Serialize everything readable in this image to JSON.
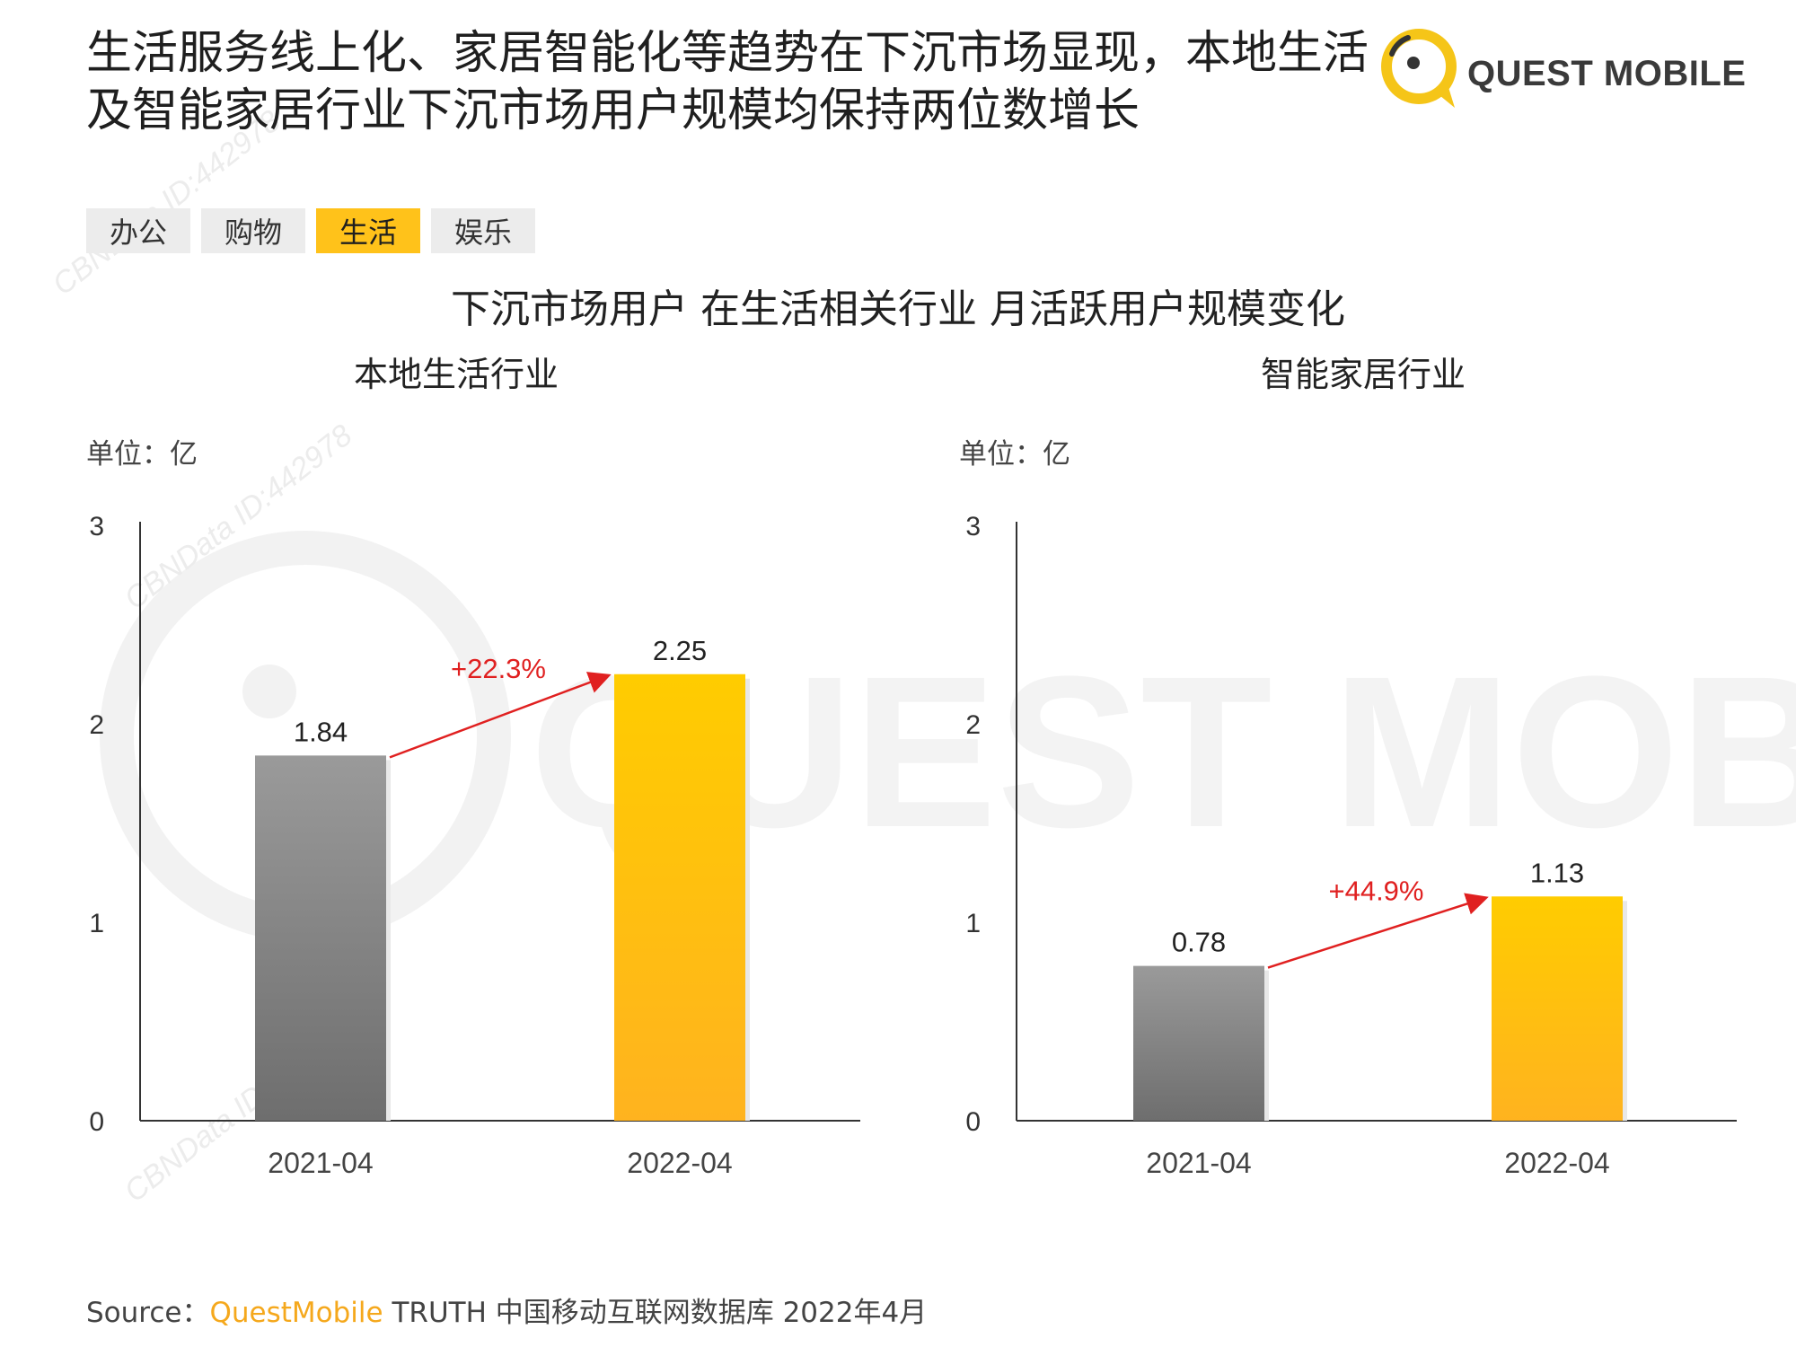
{
  "headline": {
    "line1": "生活服务线上化、家居智能化等趋势在下沉市场显现，本地生活",
    "line2": "及智能家居行业下沉市场用户规模均保持两位数增长"
  },
  "logo": {
    "text": "QUEST MOBILE",
    "icon": "quest-mobile-logo-icon",
    "color": "#f5c518"
  },
  "tabs": [
    {
      "label": "办公",
      "active": false
    },
    {
      "label": "购物",
      "active": false
    },
    {
      "label": "生活",
      "active": true
    },
    {
      "label": "娱乐",
      "active": false
    }
  ],
  "main_title": "下沉市场用户 在生活相关行业 月活跃用户规模变化",
  "watermark": {
    "text": "QUEST MOBILE",
    "diagonal_lines": [
      "CBNData ID:442978",
      "CBNData ID:442978",
      "CBNData ID:442978"
    ]
  },
  "chart_data": [
    {
      "type": "bar",
      "title": "本地生活行业",
      "unit_label": "单位：亿",
      "categories": [
        "2021-04",
        "2022-04"
      ],
      "values": [
        1.84,
        2.25
      ],
      "value_labels": [
        "1.84",
        "2.25"
      ],
      "ylim": [
        0,
        3
      ],
      "yticks": [
        "0",
        "1",
        "2",
        "3"
      ],
      "growth_label": "+22.3%",
      "colors": [
        "#7a7a7a",
        "#ffc107"
      ],
      "annotation_color": "#e02020",
      "grid": false
    },
    {
      "type": "bar",
      "title": "智能家居行业",
      "unit_label": "单位：亿",
      "categories": [
        "2021-04",
        "2022-04"
      ],
      "values": [
        0.78,
        1.13
      ],
      "value_labels": [
        "0.78",
        "1.13"
      ],
      "ylim": [
        0,
        3
      ],
      "yticks": [
        "0",
        "1",
        "2",
        "3"
      ],
      "growth_label": "+44.9%",
      "colors": [
        "#7a7a7a",
        "#ffc107"
      ],
      "annotation_color": "#e02020",
      "grid": false
    }
  ],
  "source": {
    "prefix": "Source：",
    "brand": "QuestMobile",
    "rest": " TRUTH 中国移动互联网数据库 2022年4月"
  }
}
